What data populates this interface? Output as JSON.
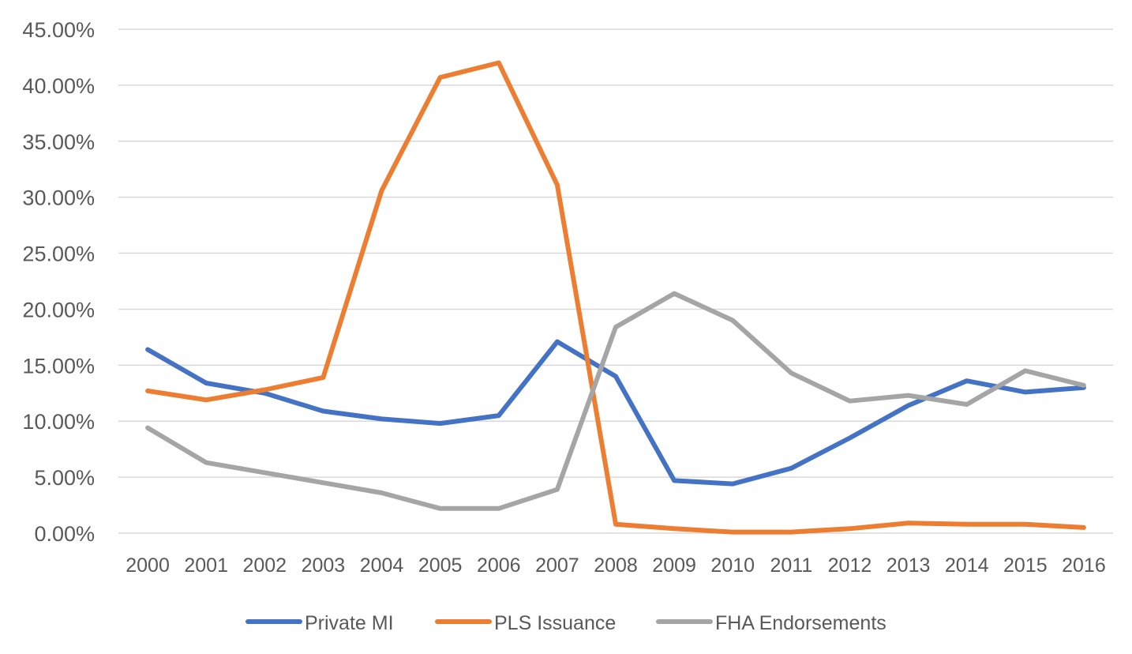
{
  "chart_data": {
    "type": "line",
    "title": "",
    "xlabel": "",
    "ylabel": "",
    "x": [
      "2000",
      "2001",
      "2002",
      "2003",
      "2004",
      "2005",
      "2006",
      "2007",
      "2008",
      "2009",
      "2010",
      "2011",
      "2012",
      "2013",
      "2014",
      "2015",
      "2016"
    ],
    "ylim": [
      0,
      45
    ],
    "yticks": [
      0,
      5,
      10,
      15,
      20,
      25,
      30,
      35,
      40,
      45
    ],
    "ytick_labels": [
      "0.00%",
      "5.00%",
      "10.00%",
      "15.00%",
      "20.00%",
      "25.00%",
      "30.00%",
      "35.00%",
      "40.00%",
      "45.00%"
    ],
    "grid": true,
    "legend_position": "bottom",
    "series": [
      {
        "name": "Private MI",
        "color": "#4472C4",
        "values": [
          16.4,
          13.4,
          12.5,
          10.9,
          10.2,
          9.8,
          10.5,
          17.1,
          14.0,
          4.7,
          4.4,
          5.8,
          8.5,
          11.4,
          13.6,
          12.6,
          13.0
        ]
      },
      {
        "name": "PLS Issuance",
        "color": "#ED7D31",
        "values": [
          12.7,
          11.9,
          12.8,
          13.9,
          30.6,
          40.7,
          42.0,
          31.1,
          0.8,
          0.4,
          0.1,
          0.1,
          0.4,
          0.9,
          0.8,
          0.8,
          0.5
        ]
      },
      {
        "name": "FHA Endorsements",
        "color": "#A5A5A5",
        "values": [
          9.4,
          6.3,
          5.4,
          4.5,
          3.6,
          2.2,
          2.2,
          3.9,
          18.4,
          21.4,
          19.0,
          14.3,
          11.8,
          12.3,
          11.5,
          14.5,
          13.2
        ]
      }
    ]
  }
}
